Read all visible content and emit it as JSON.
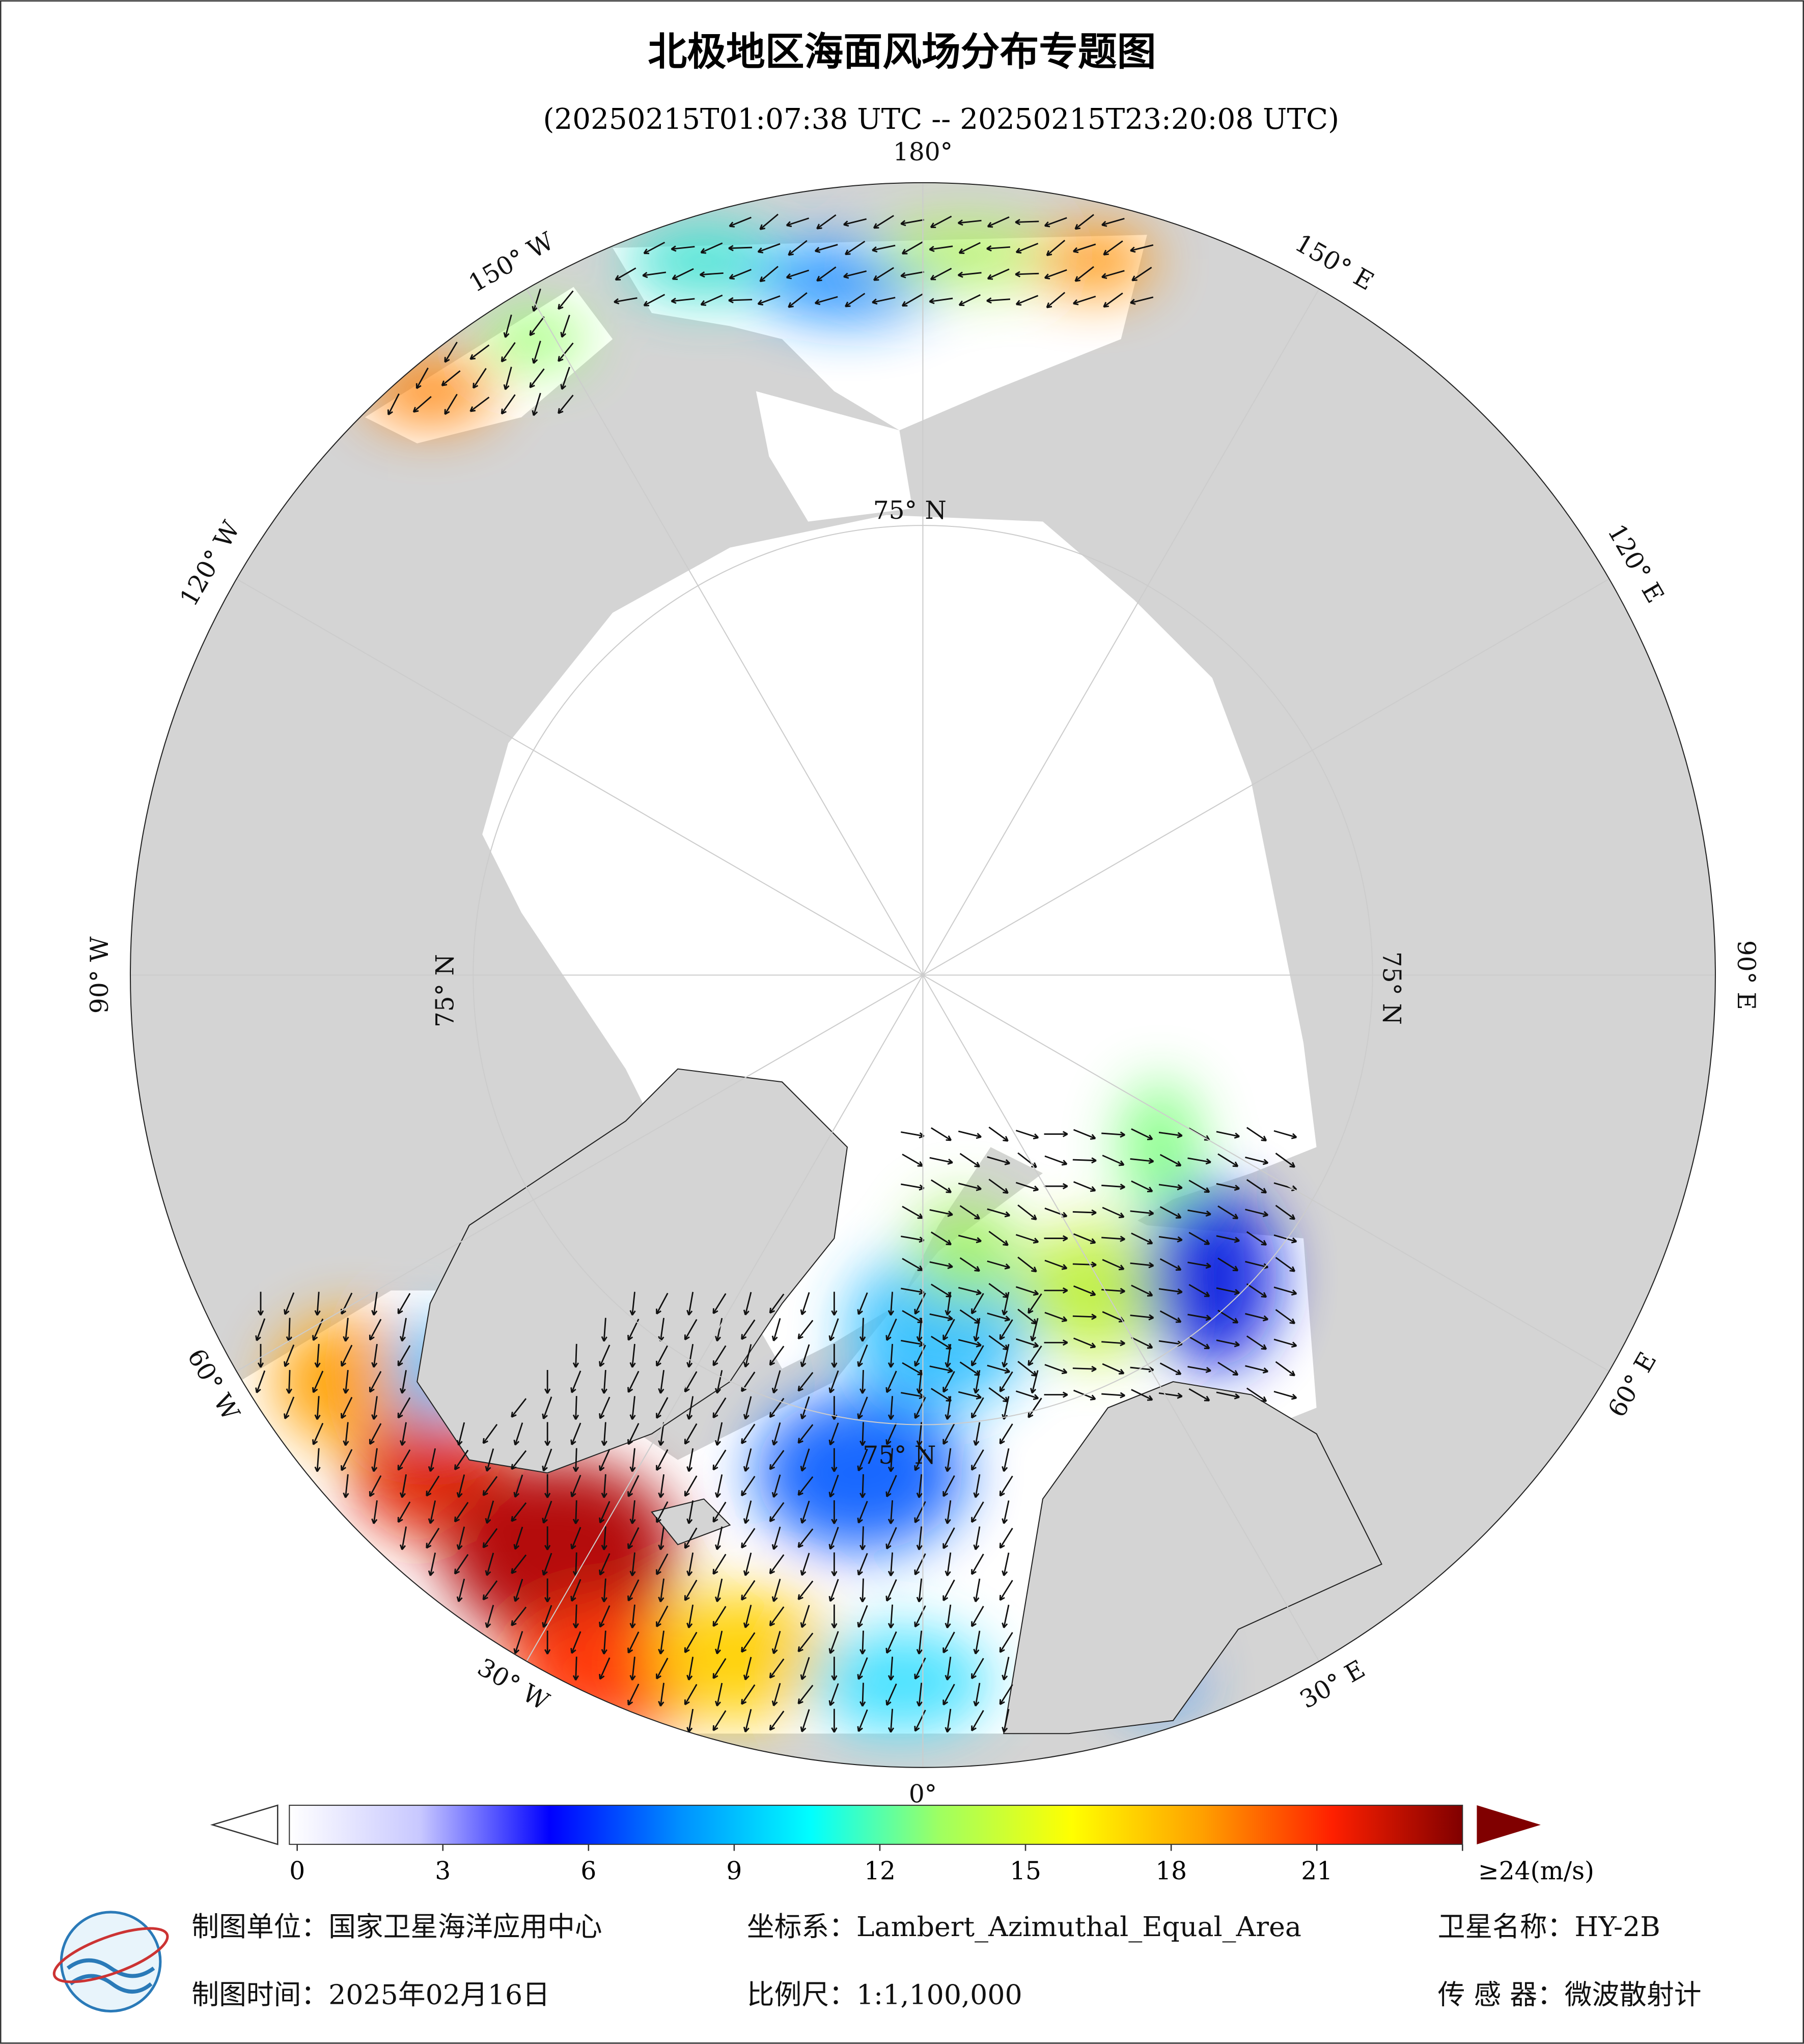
{
  "title": "北极地区海面风场分布专题图",
  "subtitle": "(20250215T01:07:38 UTC -- 20250215T23:20:08 UTC)",
  "graticule_labels": [
    "180°",
    "150° E",
    "120° E",
    "90° E",
    "60° E",
    "30° E",
    "0°",
    "30° W",
    "60° W",
    "90° W",
    "120° W",
    "150° W"
  ],
  "latitude_labels": [
    "75° N",
    "75° N",
    "75° N",
    "75° N"
  ],
  "colorbar": {
    "ticks": [
      0,
      3,
      6,
      9,
      12,
      15,
      18,
      21,
      {
        "value": 24,
        "label": "≥24(m/s)"
      }
    ],
    "colors": [
      "#ffffff",
      "#c8c8ff",
      "#0000ff",
      "#0090ff",
      "#00ffff",
      "#a0ff60",
      "#ffff00",
      "#ffa000",
      "#ff2000",
      "#800000"
    ]
  },
  "footer": {
    "unit": "制图单位：国家卫星海洋应用中心",
    "crs": "坐标系：Lambert_Azimuthal_Equal_Area",
    "satellite": "卫星名称：HY-2B",
    "date": "制图时间：2025年02月16日",
    "scale": "比例尺：1:1,100,000",
    "sensor": "传 感 器：微波散射计"
  }
}
